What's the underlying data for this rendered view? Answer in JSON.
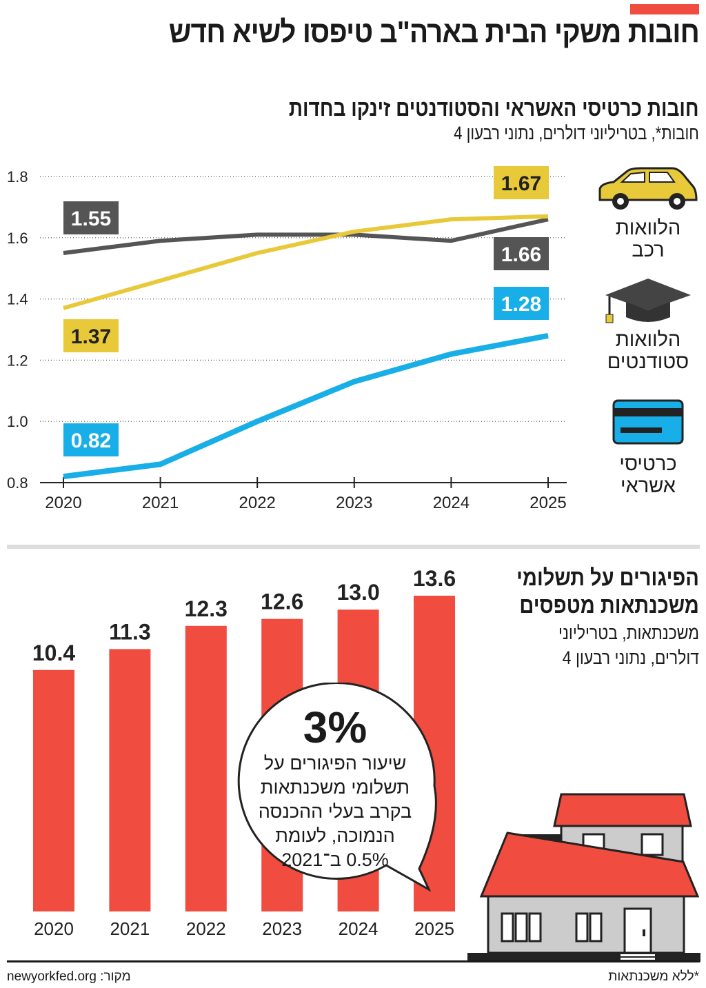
{
  "header": {
    "title": "חובות משקי הבית בארה\"ב טיפסו לשיא חדש",
    "accent_color": "#f04c3f"
  },
  "chart_data": [
    {
      "type": "line",
      "title": "חובות כרטיסי האשראי והסטודנטים זינקו בחדות",
      "subtitle": "חובות*, בטריליוני דולרים, נתוני רבעון 4",
      "x": [
        2020,
        2021,
        2022,
        2023,
        2024,
        2025
      ],
      "ylim": [
        0.8,
        1.8
      ],
      "yticks": [
        "0.8",
        "1.0",
        "1.2",
        "1.4",
        "1.6",
        "1.8"
      ],
      "grid": "horizontal dotted",
      "legend_placement": "right",
      "series": [
        {
          "name": "הלוואות רכב",
          "color": "#555555",
          "icon": "car-icon",
          "values": [
            1.55,
            1.59,
            1.61,
            1.61,
            1.59,
            1.66
          ],
          "labels": {
            "start": "1.55",
            "end": "1.66"
          }
        },
        {
          "name": "הלוואות סטודנטים",
          "color": "#e8c93a",
          "icon": "graduation-cap-icon",
          "values": [
            1.37,
            1.46,
            1.55,
            1.62,
            1.66,
            1.67
          ],
          "labels": {
            "start": "1.37",
            "end": "1.67"
          }
        },
        {
          "name": "כרטיסי אשראי",
          "color": "#18aee8",
          "icon": "credit-card-icon",
          "values": [
            0.82,
            0.86,
            1.0,
            1.13,
            1.22,
            1.28
          ],
          "labels": {
            "start": "0.82",
            "end": "1.28"
          }
        }
      ]
    },
    {
      "type": "bar",
      "title": "הפיגורים על תשלומי משכנתאות מטפסים",
      "subtitle": "משכנתאות, בטריליוני דולרים, נתוני רבעון 4",
      "categories": [
        "2020",
        "2021",
        "2022",
        "2023",
        "2024",
        "2025"
      ],
      "values": [
        10.4,
        11.3,
        12.3,
        12.6,
        13.0,
        13.6
      ],
      "value_labels": [
        "10.4",
        "11.3",
        "12.3",
        "12.6",
        "13.0",
        "13.6"
      ],
      "color": "#f04c3f",
      "ylim": [
        0,
        13.6
      ],
      "annotation": {
        "big": "3%",
        "lines": [
          "שיעור הפיגורים על",
          "תשלומי משכנתאות",
          "בקרב בעלי ההכנסה",
          "הנמוכה, לעומת",
          "0.5% ב־2021"
        ]
      }
    }
  ],
  "chart2_title_lines": [
    "הפיגורים על תשלומי",
    "משכנתאות מטפסים"
  ],
  "chart2_unit_lines": [
    "משכנתאות, בטריליוני",
    "דולרים, נתוני רבעון 4"
  ],
  "legend_lines": {
    "car": [
      "הלוואות",
      "רכב"
    ],
    "student": [
      "הלוואות",
      "סטודנטים"
    ],
    "card": [
      "כרטיסי",
      "אשראי"
    ]
  },
  "footer": {
    "source": "newyorkfed.org :מקור",
    "note": "*ללא משכנתאות"
  }
}
